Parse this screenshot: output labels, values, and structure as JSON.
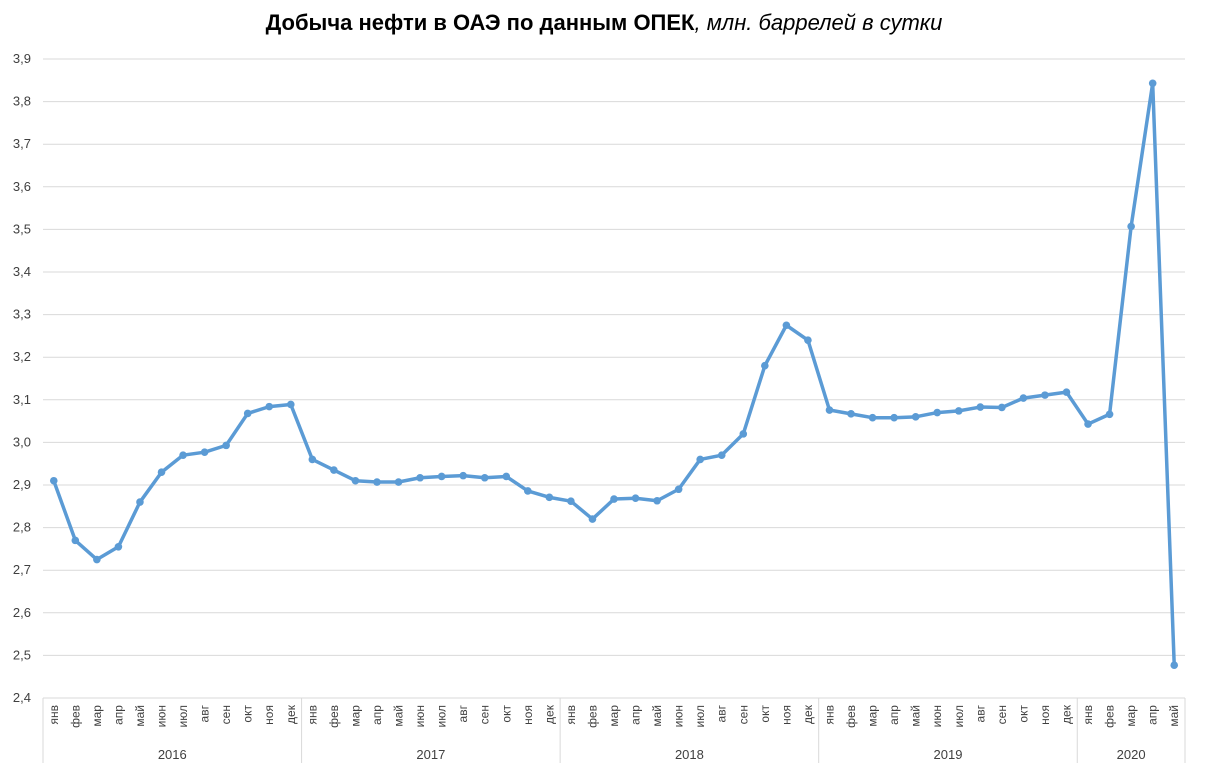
{
  "chart_data": {
    "type": "line",
    "title": "Добыча нефти в ОАЭ по данным ОПЕК",
    "title_unit": ", млн. баррелей в сутки",
    "xlabel": "",
    "ylabel": "",
    "ylim": [
      2.4,
      3.9
    ],
    "y_ticks": [
      "2,4",
      "2,5",
      "2,6",
      "2,7",
      "2,8",
      "2,9",
      "3,0",
      "3,1",
      "3,2",
      "3,3",
      "3,4",
      "3,5",
      "3,6",
      "3,7",
      "3,8",
      "3,9"
    ],
    "grid": true,
    "legend": "none",
    "line_color": "#5B9BD5",
    "grid_color": "#D9D9D9",
    "years": [
      {
        "label": "2016",
        "count": 12
      },
      {
        "label": "2017",
        "count": 12
      },
      {
        "label": "2018",
        "count": 12
      },
      {
        "label": "2019",
        "count": 12
      },
      {
        "label": "2020",
        "count": 5
      }
    ],
    "months": [
      "янв",
      "фев",
      "мар",
      "апр",
      "май",
      "июн",
      "июл",
      "авг",
      "сен",
      "окт",
      "ноя",
      "дек",
      "янв",
      "фев",
      "мар",
      "апр",
      "май",
      "июн",
      "июл",
      "авг",
      "сен",
      "окт",
      "ноя",
      "дек",
      "янв",
      "фев",
      "мар",
      "апр",
      "май",
      "июн",
      "июл",
      "авг",
      "сен",
      "окт",
      "ноя",
      "дек",
      "янв",
      "фев",
      "мар",
      "апр",
      "май",
      "июн",
      "июл",
      "авг",
      "сен",
      "окт",
      "ноя",
      "дек",
      "янв",
      "фев",
      "мар",
      "апр",
      "май"
    ],
    "series": [
      {
        "values": [
          2.91,
          2.77,
          2.725,
          2.755,
          2.86,
          2.93,
          2.97,
          2.977,
          2.993,
          3.068,
          3.084,
          3.089,
          2.96,
          2.935,
          2.91,
          2.907,
          2.907,
          2.917,
          2.92,
          2.922,
          2.917,
          2.92,
          2.886,
          2.871,
          2.862,
          2.82,
          2.867,
          2.869,
          2.863,
          2.89,
          2.96,
          2.97,
          3.02,
          3.18,
          3.275,
          3.24,
          3.076,
          3.067,
          3.058,
          3.058,
          3.06,
          3.07,
          3.074,
          3.083,
          3.082,
          3.104,
          3.111,
          3.118,
          3.043,
          3.066,
          3.507,
          3.843,
          2.477
        ]
      }
    ]
  }
}
